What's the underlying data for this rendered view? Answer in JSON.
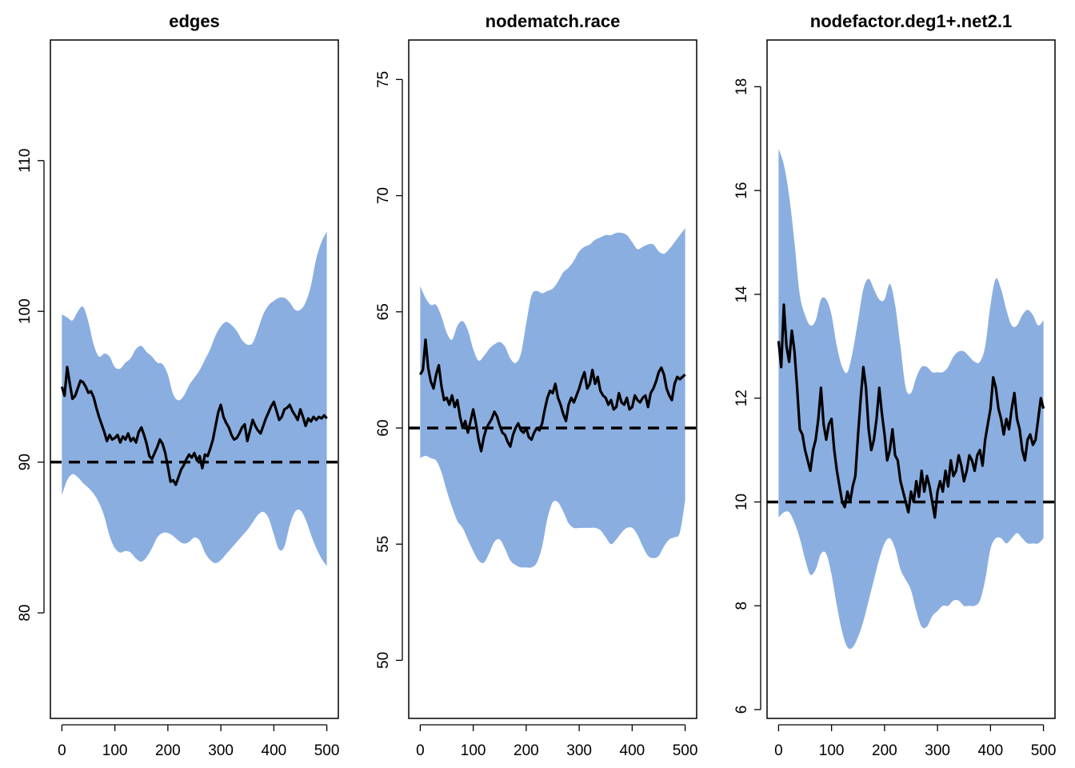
{
  "colors": {
    "band": "#8aaee0",
    "line": "#000000",
    "background": "#ffffff"
  },
  "chart_data": [
    {
      "type": "area",
      "title": "edges",
      "xlim": [
        0,
        500
      ],
      "ylim": [
        73,
        118
      ],
      "x_ticks": [
        0,
        100,
        200,
        300,
        400,
        500
      ],
      "y_ticks": [
        80,
        90,
        100,
        110
      ],
      "target": 90,
      "band": {
        "x": [
          0,
          10,
          20,
          30,
          40,
          50,
          60,
          70,
          80,
          90,
          100,
          110,
          120,
          130,
          140,
          150,
          160,
          170,
          180,
          190,
          200,
          210,
          220,
          230,
          240,
          250,
          260,
          270,
          280,
          290,
          300,
          310,
          320,
          330,
          340,
          350,
          360,
          370,
          380,
          390,
          400,
          410,
          420,
          430,
          440,
          450,
          460,
          470,
          480,
          490,
          500
        ],
        "upper": [
          99.8,
          99.6,
          99.4,
          100.0,
          100.3,
          99.3,
          97.8,
          97.0,
          97.2,
          97.0,
          96.3,
          96.2,
          96.6,
          96.9,
          97.5,
          97.7,
          97.3,
          97.0,
          96.6,
          96.5,
          95.8,
          94.5,
          94.1,
          94.4,
          95.1,
          95.6,
          96.1,
          96.8,
          97.5,
          98.4,
          99.0,
          99.3,
          99.1,
          98.7,
          98.1,
          97.8,
          97.9,
          98.8,
          99.8,
          100.4,
          100.7,
          100.9,
          100.9,
          100.6,
          100.1,
          100.1,
          100.6,
          101.7,
          103.5,
          104.6,
          105.3
        ],
        "lower": [
          87.8,
          88.8,
          89.2,
          89.0,
          88.6,
          88.3,
          87.9,
          87.3,
          86.4,
          85.1,
          84.3,
          84.0,
          84.1,
          84.0,
          83.6,
          83.4,
          83.7,
          84.3,
          85.0,
          85.3,
          85.3,
          85.1,
          84.8,
          84.6,
          84.7,
          85.0,
          84.8,
          84.0,
          83.5,
          83.3,
          83.5,
          83.9,
          84.3,
          84.7,
          85.1,
          85.5,
          86.0,
          86.5,
          86.7,
          86.3,
          85.2,
          84.2,
          84.4,
          85.8,
          86.7,
          86.8,
          86.2,
          85.2,
          84.3,
          83.6,
          83.1
        ]
      },
      "series": [
        {
          "x": [
            0,
            5,
            10,
            15,
            20,
            25,
            30,
            35,
            40,
            45,
            50,
            55,
            60,
            65,
            70,
            75,
            80,
            85,
            90,
            95,
            100,
            105,
            110,
            115,
            120,
            125,
            130,
            135,
            140,
            145,
            150,
            155,
            160,
            165,
            170,
            175,
            180,
            185,
            190,
            195,
            200,
            205,
            210,
            215,
            220,
            225,
            230,
            235,
            240,
            245,
            250,
            255,
            260,
            265,
            270,
            275,
            280,
            285,
            290,
            295,
            300,
            305,
            310,
            315,
            320,
            325,
            330,
            335,
            340,
            345,
            350,
            355,
            360,
            365,
            370,
            375,
            380,
            385,
            390,
            395,
            400,
            405,
            410,
            415,
            420,
            425,
            430,
            435,
            440,
            445,
            450,
            455,
            460,
            465,
            470,
            475,
            480,
            485,
            490,
            495,
            500
          ],
          "y": [
            95.0,
            94.4,
            96.3,
            95.2,
            94.2,
            94.4,
            94.9,
            95.4,
            95.3,
            95.0,
            94.6,
            94.7,
            94.3,
            93.6,
            93.0,
            92.5,
            92.0,
            91.4,
            91.8,
            91.5,
            91.6,
            91.8,
            91.3,
            91.7,
            91.5,
            91.9,
            91.4,
            91.6,
            91.3,
            92.0,
            92.3,
            91.8,
            91.2,
            90.4,
            90.2,
            90.6,
            91.0,
            91.5,
            91.2,
            90.6,
            89.7,
            88.7,
            88.8,
            88.5,
            89.0,
            89.5,
            89.8,
            90.2,
            90.5,
            90.3,
            90.6,
            90.1,
            90.4,
            89.6,
            90.5,
            90.4,
            90.9,
            91.5,
            92.4,
            93.3,
            93.8,
            93.0,
            92.6,
            92.3,
            91.8,
            91.5,
            91.6,
            91.9,
            92.3,
            92.5,
            91.4,
            92.1,
            92.8,
            92.4,
            92.1,
            91.9,
            92.4,
            92.9,
            93.3,
            93.7,
            94.0,
            93.4,
            92.8,
            93.0,
            93.5,
            93.6,
            93.8,
            93.4,
            93.1,
            92.8,
            93.5,
            93.0,
            92.4,
            92.9,
            92.7,
            93.0,
            92.8,
            93.0,
            92.9,
            93.1,
            92.9
          ]
        }
      ]
    },
    {
      "type": "area",
      "title": "nodematch.race",
      "xlim": [
        0,
        500
      ],
      "ylim": [
        47.5,
        76.7
      ],
      "x_ticks": [
        0,
        100,
        200,
        300,
        400,
        500
      ],
      "y_ticks": [
        50,
        55,
        60,
        65,
        70,
        75
      ],
      "target": 60,
      "band": {
        "x": [
          0,
          10,
          20,
          30,
          40,
          50,
          60,
          70,
          80,
          90,
          100,
          110,
          120,
          130,
          140,
          150,
          160,
          170,
          180,
          190,
          200,
          210,
          220,
          230,
          240,
          250,
          260,
          270,
          280,
          290,
          300,
          310,
          320,
          330,
          340,
          350,
          360,
          370,
          380,
          390,
          400,
          410,
          420,
          430,
          440,
          450,
          460,
          470,
          480,
          490,
          500
        ],
        "upper": [
          66.1,
          65.6,
          65.3,
          65.3,
          64.8,
          64.1,
          63.8,
          64.4,
          64.6,
          64.2,
          63.4,
          62.9,
          63.1,
          63.4,
          63.6,
          63.7,
          63.5,
          63.0,
          62.8,
          63.2,
          64.5,
          65.7,
          65.9,
          65.8,
          65.9,
          66.0,
          66.3,
          66.7,
          66.9,
          67.2,
          67.6,
          67.8,
          67.9,
          68.1,
          68.2,
          68.3,
          68.3,
          68.4,
          68.4,
          68.3,
          68.0,
          67.7,
          67.8,
          67.9,
          67.9,
          67.6,
          67.5,
          67.7,
          68.0,
          68.3,
          68.6
        ],
        "lower": [
          58.7,
          58.8,
          58.7,
          58.6,
          58.1,
          57.3,
          56.6,
          56.0,
          55.7,
          55.2,
          54.7,
          54.3,
          54.2,
          54.6,
          55.1,
          55.2,
          54.8,
          54.3,
          54.1,
          54.0,
          54.0,
          54.0,
          54.2,
          54.9,
          56.1,
          56.8,
          56.8,
          56.4,
          55.9,
          55.7,
          55.7,
          55.7,
          55.7,
          55.7,
          55.6,
          55.3,
          55.0,
          55.2,
          55.5,
          55.7,
          55.7,
          55.4,
          54.9,
          54.5,
          54.4,
          54.5,
          54.9,
          55.2,
          55.3,
          55.5,
          56.9
        ]
      },
      "series": [
        {
          "x": [
            0,
            5,
            10,
            15,
            20,
            25,
            30,
            35,
            40,
            45,
            50,
            55,
            60,
            65,
            70,
            75,
            80,
            85,
            90,
            95,
            100,
            105,
            110,
            115,
            120,
            125,
            130,
            135,
            140,
            145,
            150,
            155,
            160,
            165,
            170,
            175,
            180,
            185,
            190,
            195,
            200,
            205,
            210,
            215,
            220,
            225,
            230,
            235,
            240,
            245,
            250,
            255,
            260,
            265,
            270,
            275,
            280,
            285,
            290,
            295,
            300,
            305,
            310,
            315,
            320,
            325,
            330,
            335,
            340,
            345,
            350,
            355,
            360,
            365,
            370,
            375,
            380,
            385,
            390,
            395,
            400,
            405,
            410,
            415,
            420,
            425,
            430,
            435,
            440,
            445,
            450,
            455,
            460,
            465,
            470,
            475,
            480,
            485,
            490,
            495,
            500
          ],
          "y": [
            62.3,
            62.5,
            63.8,
            62.6,
            62.0,
            61.7,
            62.3,
            62.7,
            61.8,
            61.2,
            61.3,
            61.0,
            61.4,
            60.9,
            61.2,
            60.5,
            60.0,
            60.3,
            59.8,
            60.3,
            60.8,
            60.2,
            59.5,
            59.0,
            59.6,
            60.0,
            60.2,
            60.4,
            60.7,
            60.5,
            60.1,
            59.8,
            59.7,
            59.4,
            59.2,
            59.7,
            60.0,
            60.2,
            59.9,
            59.8,
            60.0,
            59.6,
            59.5,
            59.8,
            60.0,
            59.9,
            60.2,
            60.8,
            61.3,
            61.6,
            61.5,
            61.9,
            61.3,
            61.0,
            60.6,
            60.3,
            61.0,
            61.3,
            61.1,
            61.4,
            61.7,
            62.1,
            62.4,
            61.7,
            61.9,
            62.5,
            61.9,
            62.2,
            61.6,
            61.4,
            61.3,
            61.0,
            61.2,
            60.8,
            60.9,
            61.5,
            61.1,
            61.0,
            61.3,
            60.8,
            60.9,
            61.4,
            61.2,
            61.1,
            61.3,
            61.4,
            60.9,
            61.5,
            61.7,
            62.0,
            62.4,
            62.6,
            62.3,
            61.7,
            61.4,
            61.2,
            61.9,
            62.2,
            62.1,
            62.2,
            62.3
          ]
        }
      ]
    },
    {
      "type": "area",
      "title": "nodefactor.deg1+.net2.1",
      "xlim": [
        0,
        500
      ],
      "ylim": [
        5.83,
        18.9
      ],
      "x_ticks": [
        0,
        100,
        200,
        300,
        400,
        500
      ],
      "y_ticks": [
        6,
        8,
        10,
        12,
        14,
        16,
        18
      ],
      "target": 10,
      "band": {
        "x": [
          0,
          10,
          20,
          30,
          40,
          50,
          60,
          70,
          80,
          90,
          100,
          110,
          120,
          130,
          140,
          150,
          160,
          170,
          180,
          190,
          200,
          210,
          220,
          230,
          240,
          250,
          260,
          270,
          280,
          290,
          300,
          310,
          320,
          330,
          340,
          350,
          360,
          370,
          380,
          390,
          400,
          410,
          420,
          430,
          440,
          450,
          460,
          470,
          480,
          490,
          500
        ],
        "upper": [
          16.8,
          16.5,
          15.9,
          15.0,
          14.0,
          13.6,
          13.4,
          13.5,
          13.9,
          13.9,
          13.6,
          13.0,
          12.6,
          12.5,
          12.9,
          13.5,
          14.1,
          14.3,
          14.1,
          13.9,
          13.9,
          14.2,
          13.8,
          13.0,
          12.2,
          12.1,
          12.4,
          12.6,
          12.6,
          12.5,
          12.5,
          12.5,
          12.6,
          12.8,
          12.9,
          12.9,
          12.8,
          12.7,
          12.7,
          13.0,
          13.8,
          14.3,
          14.1,
          13.7,
          13.4,
          13.4,
          13.6,
          13.7,
          13.6,
          13.4,
          13.5
        ],
        "lower": [
          9.7,
          9.8,
          9.8,
          9.6,
          9.3,
          8.9,
          8.6,
          8.7,
          9.0,
          9.0,
          8.6,
          8.0,
          7.5,
          7.2,
          7.2,
          7.4,
          7.7,
          8.1,
          8.5,
          8.9,
          9.2,
          9.3,
          9.1,
          8.7,
          8.5,
          8.3,
          7.9,
          7.6,
          7.6,
          7.8,
          7.9,
          8.0,
          8.0,
          8.1,
          8.1,
          8.0,
          8.0,
          8.0,
          8.1,
          8.5,
          9.1,
          9.3,
          9.3,
          9.2,
          9.3,
          9.4,
          9.3,
          9.2,
          9.2,
          9.2,
          9.3
        ]
      },
      "series": [
        {
          "x": [
            0,
            5,
            10,
            15,
            20,
            25,
            30,
            35,
            40,
            45,
            50,
            55,
            60,
            65,
            70,
            75,
            80,
            85,
            90,
            95,
            100,
            105,
            110,
            115,
            120,
            125,
            130,
            135,
            140,
            145,
            150,
            155,
            160,
            165,
            170,
            175,
            180,
            185,
            190,
            195,
            200,
            205,
            210,
            215,
            220,
            225,
            230,
            235,
            240,
            245,
            250,
            255,
            260,
            265,
            270,
            275,
            280,
            285,
            290,
            295,
            300,
            305,
            310,
            315,
            320,
            325,
            330,
            335,
            340,
            345,
            350,
            355,
            360,
            365,
            370,
            375,
            380,
            385,
            390,
            395,
            400,
            405,
            410,
            415,
            420,
            425,
            430,
            435,
            440,
            445,
            450,
            455,
            460,
            465,
            470,
            475,
            480,
            485,
            490,
            495,
            500
          ],
          "y": [
            13.1,
            12.6,
            13.8,
            13.0,
            12.7,
            13.3,
            12.9,
            12.2,
            11.4,
            11.3,
            11.0,
            10.8,
            10.6,
            11.0,
            11.2,
            11.6,
            12.2,
            11.5,
            11.2,
            11.5,
            11.6,
            11.0,
            10.6,
            10.3,
            10.0,
            9.9,
            10.2,
            10.0,
            10.3,
            10.5,
            11.3,
            12.0,
            12.6,
            12.2,
            11.4,
            11.0,
            11.2,
            11.6,
            12.2,
            11.7,
            11.3,
            10.8,
            11.0,
            11.4,
            10.9,
            10.8,
            10.4,
            10.2,
            10.0,
            9.8,
            10.2,
            10.0,
            10.4,
            10.1,
            10.6,
            10.2,
            10.5,
            10.3,
            10.0,
            9.7,
            10.2,
            10.4,
            10.2,
            10.6,
            10.3,
            10.8,
            10.5,
            10.6,
            10.9,
            10.7,
            10.4,
            10.6,
            10.9,
            10.8,
            10.6,
            10.9,
            11.0,
            10.7,
            11.2,
            11.5,
            11.8,
            12.4,
            12.2,
            11.8,
            11.6,
            11.3,
            11.6,
            11.4,
            11.8,
            12.1,
            11.6,
            11.4,
            11.0,
            10.8,
            11.2,
            11.3,
            11.1,
            11.2,
            11.6,
            12.0,
            11.8
          ]
        }
      ]
    }
  ]
}
